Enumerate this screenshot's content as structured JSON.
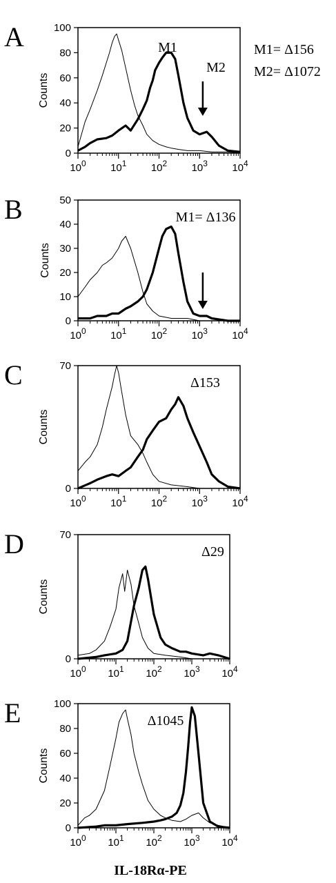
{
  "figure": {
    "xlabel": "IL-18Rα-PE"
  },
  "chart_data": [
    {
      "panel": "A",
      "type": "line",
      "ylabel": "Counts",
      "xscale": "log",
      "xlim": [
        1,
        10000
      ],
      "ylim": [
        0,
        100
      ],
      "xticks": [
        "10^0",
        "10^1",
        "10^2",
        "10^3",
        "10^4"
      ],
      "yticks": [
        "0",
        "20",
        "40",
        "60",
        "80",
        "100"
      ],
      "annotations": [
        "M1",
        "M2",
        "M1= Δ156",
        "M2= Δ1072"
      ],
      "arrow_at": 1200,
      "series": [
        {
          "style": "thin",
          "x": [
            1.0,
            1.5,
            2,
            3,
            4,
            5,
            6,
            7,
            8,
            9,
            10,
            12,
            15,
            20,
            25,
            30,
            40,
            50,
            70,
            100,
            150,
            200,
            300,
            500,
            1000,
            2000,
            5000,
            10000
          ],
          "y": [
            5,
            25,
            35,
            50,
            62,
            72,
            80,
            88,
            93,
            95,
            90,
            82,
            68,
            50,
            38,
            30,
            22,
            15,
            10,
            7,
            5,
            4,
            3,
            2,
            2,
            1,
            1,
            0
          ]
        },
        {
          "style": "thick",
          "x": [
            1.0,
            1.5,
            2,
            3,
            5,
            7,
            10,
            15,
            20,
            30,
            40,
            50,
            60,
            70,
            80,
            100,
            120,
            150,
            200,
            250,
            300,
            400,
            500,
            700,
            1000,
            1500,
            2000,
            3000,
            5000,
            10000
          ],
          "y": [
            2,
            5,
            8,
            11,
            12,
            14,
            18,
            22,
            18,
            27,
            35,
            42,
            52,
            58,
            66,
            72,
            76,
            80,
            80,
            75,
            62,
            40,
            28,
            18,
            15,
            17,
            13,
            6,
            2,
            1
          ]
        }
      ]
    },
    {
      "panel": "B",
      "type": "line",
      "ylabel": "Counts",
      "xscale": "log",
      "xlim": [
        1,
        10000
      ],
      "ylim": [
        0,
        50
      ],
      "xticks": [
        "10^0",
        "10^1",
        "10^2",
        "10^3",
        "10^4"
      ],
      "yticks": [
        "0",
        "10",
        "20",
        "30",
        "40",
        "50"
      ],
      "annotations": [
        "M1= Δ136"
      ],
      "arrow_at": 1200,
      "series": [
        {
          "style": "thin",
          "x": [
            1.0,
            1.5,
            2,
            3,
            4,
            5,
            7,
            10,
            12,
            15,
            20,
            30,
            40,
            50,
            70,
            100,
            200,
            500,
            1000,
            10000
          ],
          "y": [
            10,
            14,
            17,
            20,
            23,
            24,
            26,
            30,
            33,
            35,
            30,
            20,
            12,
            7,
            4,
            2,
            1,
            1,
            0,
            0
          ]
        },
        {
          "style": "thick",
          "x": [
            1.0,
            2,
            3,
            5,
            7,
            10,
            15,
            20,
            30,
            40,
            50,
            70,
            100,
            120,
            150,
            200,
            250,
            300,
            400,
            500,
            700,
            1000,
            1500,
            2000,
            5000,
            10000
          ],
          "y": [
            1,
            1,
            2,
            2,
            3,
            3,
            5,
            6,
            8,
            10,
            13,
            20,
            30,
            35,
            38,
            39,
            36,
            28,
            16,
            8,
            3,
            2,
            2,
            1,
            0,
            0
          ]
        }
      ]
    },
    {
      "panel": "C",
      "type": "line",
      "ylabel": "Counts",
      "xscale": "log",
      "xlim": [
        1,
        10000
      ],
      "ylim": [
        0,
        70
      ],
      "xticks": [
        "10^0",
        "10^1",
        "10^2",
        "10^3",
        "10^4"
      ],
      "yticks": [
        "0",
        "70"
      ],
      "annotations": [
        "Δ153"
      ],
      "series": [
        {
          "style": "thin",
          "x": [
            1.0,
            1.5,
            2,
            3,
            4,
            5,
            6,
            7,
            8,
            9,
            10,
            12,
            15,
            20,
            30,
            40,
            50,
            70,
            100,
            200,
            500,
            1000,
            10000
          ],
          "y": [
            10,
            15,
            18,
            25,
            35,
            45,
            52,
            58,
            65,
            70,
            66,
            55,
            42,
            30,
            25,
            20,
            15,
            8,
            4,
            2,
            1,
            0,
            0
          ]
        },
        {
          "style": "thick",
          "x": [
            1.0,
            2,
            3,
            5,
            7,
            10,
            15,
            20,
            30,
            40,
            50,
            70,
            100,
            150,
            200,
            250,
            300,
            400,
            500,
            700,
            1000,
            1500,
            2000,
            3000,
            5000,
            10000
          ],
          "y": [
            0,
            3,
            5,
            7,
            8,
            7,
            10,
            12,
            18,
            22,
            28,
            33,
            38,
            40,
            45,
            48,
            52,
            47,
            40,
            32,
            24,
            15,
            8,
            4,
            1,
            0
          ]
        }
      ]
    },
    {
      "panel": "D",
      "type": "line",
      "ylabel": "Counts",
      "xscale": "log",
      "xlim": [
        1,
        10000
      ],
      "ylim": [
        0,
        70
      ],
      "xticks": [
        "10^0",
        "10^1",
        "10^2",
        "10^3",
        "10^4"
      ],
      "yticks": [
        "0",
        "70"
      ],
      "annotations": [
        "Δ29"
      ],
      "series": [
        {
          "style": "thin",
          "x": [
            1.0,
            2,
            3,
            5,
            7,
            10,
            12,
            15,
            17,
            20,
            25,
            30,
            40,
            50,
            70,
            100,
            200,
            500,
            1000,
            10000
          ],
          "y": [
            2,
            3,
            5,
            10,
            18,
            28,
            40,
            48,
            38,
            50,
            42,
            30,
            20,
            12,
            6,
            3,
            2,
            1,
            0,
            0
          ]
        },
        {
          "style": "thick",
          "x": [
            1.0,
            3,
            5,
            10,
            15,
            20,
            30,
            40,
            50,
            60,
            70,
            100,
            150,
            200,
            300,
            500,
            700,
            1000,
            2000,
            3000,
            5000,
            10000
          ],
          "y": [
            0,
            1,
            2,
            3,
            5,
            10,
            30,
            40,
            50,
            52,
            45,
            25,
            12,
            8,
            6,
            4,
            4,
            3,
            2,
            3,
            2,
            0
          ]
        }
      ]
    },
    {
      "panel": "E",
      "type": "line",
      "ylabel": "Counts",
      "xscale": "log",
      "xlim": [
        1,
        10000
      ],
      "ylim": [
        0,
        100
      ],
      "xticks": [
        "10^0",
        "10^1",
        "10^2",
        "10^3",
        "10^4"
      ],
      "yticks": [
        "0",
        "20",
        "40",
        "60",
        "80",
        "100"
      ],
      "annotations": [
        "Δ1045"
      ],
      "series": [
        {
          "style": "thin",
          "x": [
            1.0,
            1.5,
            2,
            3,
            5,
            7,
            10,
            12,
            15,
            18,
            20,
            25,
            30,
            40,
            50,
            70,
            100,
            150,
            200,
            300,
            500,
            700,
            1000,
            1500,
            2000,
            3000,
            5000,
            10000
          ],
          "y": [
            2,
            8,
            10,
            15,
            30,
            50,
            72,
            85,
            92,
            95,
            88,
            75,
            60,
            45,
            35,
            22,
            15,
            10,
            8,
            6,
            5,
            7,
            10,
            12,
            8,
            4,
            2,
            0
          ]
        },
        {
          "style": "thick",
          "x": [
            1.0,
            3,
            5,
            10,
            20,
            50,
            100,
            150,
            200,
            300,
            400,
            500,
            600,
            700,
            800,
            900,
            1000,
            1200,
            1500,
            2000,
            3000,
            5000,
            10000
          ],
          "y": [
            0,
            1,
            2,
            2,
            3,
            4,
            5,
            6,
            7,
            9,
            12,
            18,
            28,
            45,
            65,
            85,
            97,
            90,
            60,
            20,
            5,
            1,
            0
          ]
        }
      ]
    }
  ]
}
